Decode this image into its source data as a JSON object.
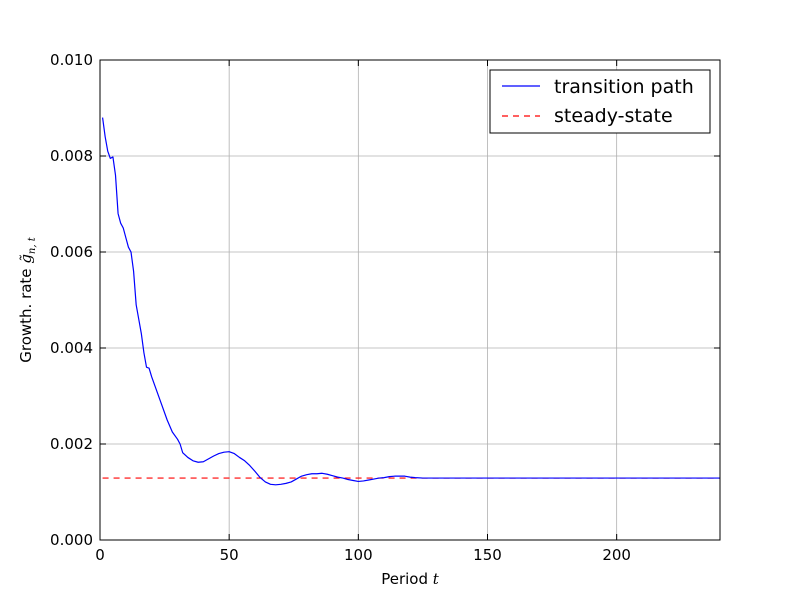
{
  "chart_data": {
    "type": "line",
    "title": "",
    "xlabel": "Period",
    "xlabel_var": "t",
    "ylabel": "Growth. rate",
    "ylabel_var": "g̃",
    "ylabel_sub": "n, t",
    "xlim": [
      0,
      240
    ],
    "ylim": [
      0.0,
      0.01
    ],
    "xticks": [
      0,
      50,
      100,
      150,
      200
    ],
    "xtick_labels": [
      "0",
      "50",
      "100",
      "150",
      "200"
    ],
    "yticks": [
      0.0,
      0.002,
      0.004,
      0.006,
      0.008,
      0.01
    ],
    "ytick_labels": [
      "0.000",
      "0.002",
      "0.004",
      "0.006",
      "0.008",
      "0.010"
    ],
    "grid": true,
    "legend_position": "top-right",
    "series": [
      {
        "name": "transition path",
        "color": "#0000ff",
        "style": "solid",
        "x": [
          1,
          2,
          3,
          4,
          5,
          6,
          7,
          8,
          9,
          10,
          11,
          12,
          13,
          14,
          15,
          16,
          17,
          18,
          19,
          20,
          22,
          24,
          26,
          28,
          30,
          31,
          32,
          34,
          36,
          38,
          40,
          42,
          44,
          46,
          48,
          50,
          52,
          54,
          56,
          58,
          60,
          62,
          64,
          66,
          68,
          70,
          72,
          74,
          76,
          78,
          80,
          82,
          84,
          86,
          88,
          90,
          92,
          94,
          96,
          98,
          100,
          102,
          104,
          106,
          108,
          110,
          112,
          114,
          116,
          118,
          120,
          122,
          125,
          130,
          140,
          160,
          180,
          200,
          220,
          240
        ],
        "values": [
          0.0088,
          0.0084,
          0.0081,
          0.00795,
          0.00798,
          0.0076,
          0.0068,
          0.0066,
          0.0065,
          0.0063,
          0.0061,
          0.006,
          0.0056,
          0.0049,
          0.0046,
          0.0043,
          0.0039,
          0.0036,
          0.00358,
          0.0034,
          0.0031,
          0.0028,
          0.0025,
          0.00225,
          0.0021,
          0.002,
          0.00182,
          0.00172,
          0.00165,
          0.00162,
          0.00163,
          0.00169,
          0.00175,
          0.0018,
          0.00183,
          0.00184,
          0.0018,
          0.00172,
          0.00165,
          0.00155,
          0.00143,
          0.0013,
          0.00121,
          0.00116,
          0.00115,
          0.00116,
          0.00118,
          0.00121,
          0.00127,
          0.00133,
          0.00136,
          0.00138,
          0.00138,
          0.00139,
          0.00137,
          0.00134,
          0.00131,
          0.00129,
          0.00126,
          0.00124,
          0.00122,
          0.00123,
          0.00125,
          0.00127,
          0.00129,
          0.0013,
          0.00132,
          0.00133,
          0.00133,
          0.00133,
          0.00131,
          0.0013,
          0.00129,
          0.00129,
          0.00129,
          0.00129,
          0.00129,
          0.00129,
          0.00129,
          0.00129
        ]
      },
      {
        "name": "steady-state",
        "color": "#ff0000",
        "style": "dashed",
        "x": [
          1,
          240
        ],
        "values": [
          0.00129,
          0.00129
        ]
      }
    ]
  }
}
